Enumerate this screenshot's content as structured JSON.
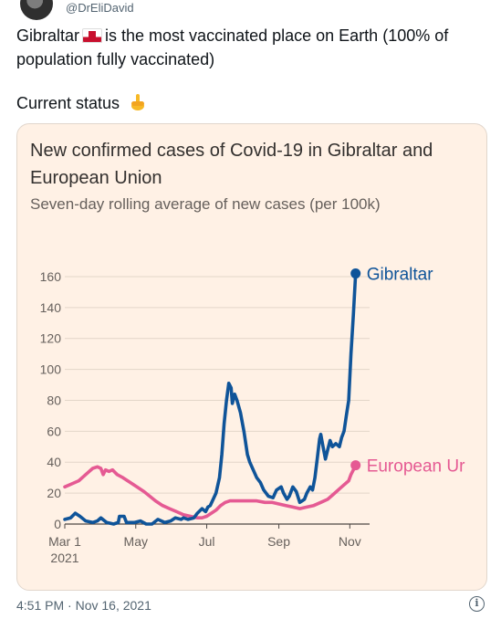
{
  "tweet": {
    "handle": "@DrEliDavid",
    "text_before_flag": "Gibraltar",
    "text_after_flag": "is the most vaccinated place on Earth (100% of population fully vaccinated)",
    "status_line": "Current status",
    "timestamp": "4:51 PM · Nov 16, 2021",
    "flag_icon": "gibraltar-flag-icon",
    "emoji_icon": "pointing-down-hand-icon",
    "info_glyph": "i"
  },
  "chart_data": {
    "type": "line",
    "title": "New confirmed cases of Covid-19 in Gibraltar and European Union",
    "subtitle": "Seven-day rolling average of new cases (per 100k)",
    "ylim": [
      0,
      170
    ],
    "yticks": [
      0,
      20,
      40,
      60,
      80,
      100,
      120,
      140,
      160
    ],
    "xlim": [
      0,
      262
    ],
    "xticks": [
      {
        "x": 0,
        "label": "Mar 1"
      },
      {
        "x": 61,
        "label": "May"
      },
      {
        "x": 122,
        "label": "Jul"
      },
      {
        "x": 184,
        "label": "Sep"
      },
      {
        "x": 245,
        "label": "Nov"
      }
    ],
    "year_label": "2021",
    "grid": true,
    "series": [
      {
        "name": "Gibraltar",
        "color": "#0f5499",
        "label_end": "Gibraltar",
        "points": [
          [
            0,
            3
          ],
          [
            5,
            4
          ],
          [
            9,
            7
          ],
          [
            13,
            5
          ],
          [
            18,
            2
          ],
          [
            24,
            1
          ],
          [
            28,
            2
          ],
          [
            31,
            4
          ],
          [
            36,
            1
          ],
          [
            42,
            0
          ],
          [
            46,
            1
          ],
          [
            47,
            5
          ],
          [
            51,
            5
          ],
          [
            53,
            1
          ],
          [
            60,
            1
          ],
          [
            65,
            2
          ],
          [
            70,
            0
          ],
          [
            75,
            0
          ],
          [
            80,
            3
          ],
          [
            86,
            1
          ],
          [
            91,
            2
          ],
          [
            95,
            4
          ],
          [
            100,
            3
          ],
          [
            102,
            4
          ],
          [
            106,
            3
          ],
          [
            111,
            4
          ],
          [
            114,
            7
          ],
          [
            118,
            10
          ],
          [
            121,
            8
          ],
          [
            123,
            11
          ],
          [
            125,
            12
          ],
          [
            130,
            20
          ],
          [
            133,
            30
          ],
          [
            135,
            45
          ],
          [
            137,
            65
          ],
          [
            139,
            80
          ],
          [
            141,
            91
          ],
          [
            143,
            88
          ],
          [
            144,
            78
          ],
          [
            146,
            84
          ],
          [
            148,
            80
          ],
          [
            151,
            72
          ],
          [
            154,
            60
          ],
          [
            157,
            45
          ],
          [
            159,
            40
          ],
          [
            162,
            35
          ],
          [
            165,
            30
          ],
          [
            168,
            27
          ],
          [
            171,
            22
          ],
          [
            175,
            18
          ],
          [
            179,
            17
          ],
          [
            182,
            22
          ],
          [
            186,
            24
          ],
          [
            188,
            20
          ],
          [
            191,
            16
          ],
          [
            193,
            18
          ],
          [
            196,
            24
          ],
          [
            199,
            21
          ],
          [
            202,
            14
          ],
          [
            204,
            15
          ],
          [
            206,
            16
          ],
          [
            208,
            20
          ],
          [
            211,
            24
          ],
          [
            213,
            22
          ],
          [
            215,
            30
          ],
          [
            217,
            42
          ],
          [
            219,
            55
          ],
          [
            220,
            58
          ],
          [
            222,
            50
          ],
          [
            224,
            42
          ],
          [
            226,
            48
          ],
          [
            228,
            54
          ],
          [
            230,
            50
          ],
          [
            233,
            52
          ],
          [
            236,
            50
          ],
          [
            238,
            56
          ],
          [
            240,
            60
          ],
          [
            242,
            70
          ],
          [
            244,
            80
          ],
          [
            246,
            110
          ],
          [
            248,
            135
          ],
          [
            250,
            162
          ]
        ]
      },
      {
        "name": "European Union",
        "color": "#e55a93",
        "label_end": "European Ur",
        "points": [
          [
            0,
            24
          ],
          [
            6,
            26
          ],
          [
            12,
            28
          ],
          [
            18,
            32
          ],
          [
            24,
            36
          ],
          [
            28,
            37
          ],
          [
            31,
            36
          ],
          [
            33,
            32
          ],
          [
            35,
            35
          ],
          [
            38,
            34
          ],
          [
            41,
            35
          ],
          [
            45,
            32
          ],
          [
            50,
            30
          ],
          [
            56,
            27
          ],
          [
            62,
            24
          ],
          [
            68,
            21
          ],
          [
            73,
            18
          ],
          [
            78,
            15
          ],
          [
            84,
            12
          ],
          [
            90,
            10
          ],
          [
            96,
            8
          ],
          [
            102,
            6
          ],
          [
            108,
            5
          ],
          [
            114,
            4
          ],
          [
            118,
            4
          ],
          [
            122,
            5
          ],
          [
            126,
            7
          ],
          [
            130,
            9
          ],
          [
            134,
            12
          ],
          [
            138,
            14
          ],
          [
            142,
            15
          ],
          [
            147,
            15
          ],
          [
            152,
            15
          ],
          [
            158,
            15
          ],
          [
            165,
            15
          ],
          [
            172,
            14
          ],
          [
            178,
            14
          ],
          [
            184,
            13
          ],
          [
            190,
            12
          ],
          [
            196,
            11
          ],
          [
            202,
            10
          ],
          [
            208,
            11
          ],
          [
            214,
            12
          ],
          [
            220,
            14
          ],
          [
            226,
            16
          ],
          [
            232,
            20
          ],
          [
            238,
            24
          ],
          [
            244,
            28
          ],
          [
            246,
            32
          ],
          [
            248,
            35
          ],
          [
            250,
            38
          ]
        ]
      }
    ]
  }
}
